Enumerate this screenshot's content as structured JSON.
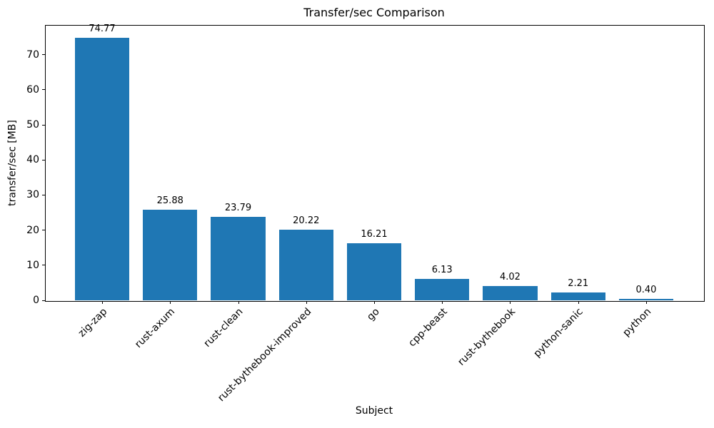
{
  "chart_data": {
    "type": "bar",
    "title": "Transfer/sec Comparison",
    "xlabel": "Subject",
    "ylabel": "transfer/sec [MB]",
    "categories": [
      "zig-zap",
      "rust-axum",
      "rust-clean",
      "rust-bythebook-improved",
      "go",
      "cpp-beast",
      "rust-bythebook",
      "python-sanic",
      "python"
    ],
    "values": [
      74.77,
      25.88,
      23.79,
      20.22,
      16.21,
      6.13,
      4.02,
      2.21,
      0.4
    ],
    "value_label_decimals": 2,
    "y_ticks": [
      0,
      10,
      20,
      30,
      40,
      50,
      60,
      70
    ],
    "ylim": [
      0,
      78.5
    ],
    "bar_color": "#1f77b4",
    "x_tick_rotation_deg": 45,
    "grid": false,
    "legend_position": "none"
  }
}
